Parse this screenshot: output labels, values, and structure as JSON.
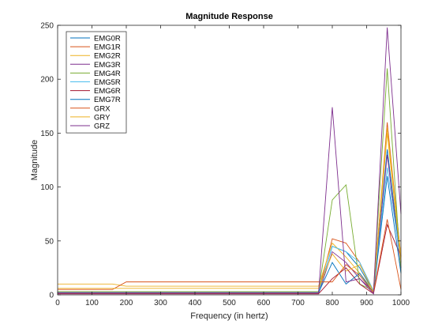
{
  "chart_data": {
    "type": "line",
    "title": "Magnitude Response",
    "xlabel": "Frequency (in hertz)",
    "ylabel": "Magnitude",
    "xlim": [
      0,
      1000
    ],
    "ylim": [
      0,
      250
    ],
    "xticks": [
      0,
      100,
      200,
      300,
      400,
      500,
      600,
      700,
      800,
      900,
      1000
    ],
    "yticks": [
      0,
      50,
      100,
      150,
      200,
      250
    ],
    "grid": false,
    "legend_position": "top-left",
    "x": [
      0,
      40,
      80,
      120,
      160,
      200,
      240,
      280,
      320,
      360,
      400,
      440,
      480,
      520,
      560,
      600,
      640,
      680,
      720,
      760,
      800,
      840,
      880,
      920,
      960,
      1000
    ],
    "series": [
      {
        "name": "EMG0R",
        "color": "#0072BD",
        "values": [
          2,
          2,
          2,
          2,
          2,
          2,
          2,
          2,
          2,
          2,
          2,
          2,
          2,
          2,
          2,
          2,
          2,
          2,
          2,
          2,
          45,
          40,
          25,
          3,
          135,
          30
        ]
      },
      {
        "name": "EMG1R",
        "color": "#D95319",
        "values": [
          3,
          3,
          3,
          3,
          3,
          3,
          3,
          3,
          3,
          3,
          3,
          3,
          3,
          3,
          3,
          3,
          3,
          3,
          3,
          3,
          52,
          48,
          30,
          3,
          160,
          35
        ]
      },
      {
        "name": "EMG2R",
        "color": "#EDB120",
        "values": [
          10,
          10,
          10,
          10,
          10,
          8,
          8,
          8,
          8,
          8,
          8,
          8,
          8,
          8,
          8,
          8,
          8,
          8,
          8,
          8,
          48,
          35,
          20,
          4,
          155,
          35
        ]
      },
      {
        "name": "EMG3R",
        "color": "#7E2F8E",
        "values": [
          1,
          1,
          1,
          1,
          1,
          1,
          1,
          1,
          1,
          1,
          1,
          1,
          1,
          1,
          1,
          1,
          1,
          1,
          1,
          1,
          40,
          30,
          15,
          3,
          130,
          25
        ]
      },
      {
        "name": "EMG4R",
        "color": "#77AC30",
        "values": [
          3,
          3,
          3,
          3,
          3,
          3,
          3,
          3,
          3,
          3,
          3,
          3,
          3,
          3,
          3,
          3,
          3,
          3,
          3,
          3,
          88,
          102,
          10,
          4,
          210,
          20
        ]
      },
      {
        "name": "EMG5R",
        "color": "#4DBEEE",
        "values": [
          2,
          2,
          2,
          2,
          2,
          2,
          2,
          2,
          2,
          2,
          2,
          2,
          2,
          2,
          2,
          2,
          2,
          2,
          2,
          2,
          45,
          40,
          30,
          4,
          118,
          30
        ]
      },
      {
        "name": "EMG6R",
        "color": "#A2142F",
        "values": [
          1,
          1,
          1,
          1,
          1,
          1,
          1,
          1,
          1,
          1,
          1,
          1,
          1,
          1,
          1,
          1,
          1,
          1,
          1,
          1,
          15,
          25,
          10,
          1,
          65,
          36
        ]
      },
      {
        "name": "EMG7R",
        "color": "#0072BD",
        "values": [
          2,
          2,
          2,
          2,
          2,
          2,
          2,
          2,
          2,
          2,
          2,
          2,
          2,
          2,
          2,
          2,
          2,
          2,
          2,
          2,
          30,
          10,
          20,
          2,
          110,
          20
        ]
      },
      {
        "name": "GRX",
        "color": "#D95319",
        "values": [
          5,
          5,
          5,
          5,
          5,
          12,
          12,
          12,
          12,
          12,
          12,
          12,
          12,
          12,
          12,
          12,
          12,
          12,
          12,
          12,
          12,
          28,
          18,
          2,
          70,
          5
        ]
      },
      {
        "name": "GRY",
        "color": "#EDB120",
        "values": [
          6,
          6,
          6,
          6,
          6,
          6,
          6,
          6,
          6,
          6,
          6,
          6,
          6,
          6,
          6,
          6,
          6,
          6,
          6,
          6,
          38,
          22,
          28,
          3,
          150,
          30
        ]
      },
      {
        "name": "GRZ",
        "color": "#7E2F8E",
        "values": [
          2,
          2,
          2,
          2,
          2,
          2,
          2,
          2,
          2,
          2,
          2,
          2,
          2,
          2,
          2,
          2,
          2,
          2,
          2,
          2,
          174,
          12,
          15,
          1,
          248,
          75
        ]
      }
    ]
  }
}
